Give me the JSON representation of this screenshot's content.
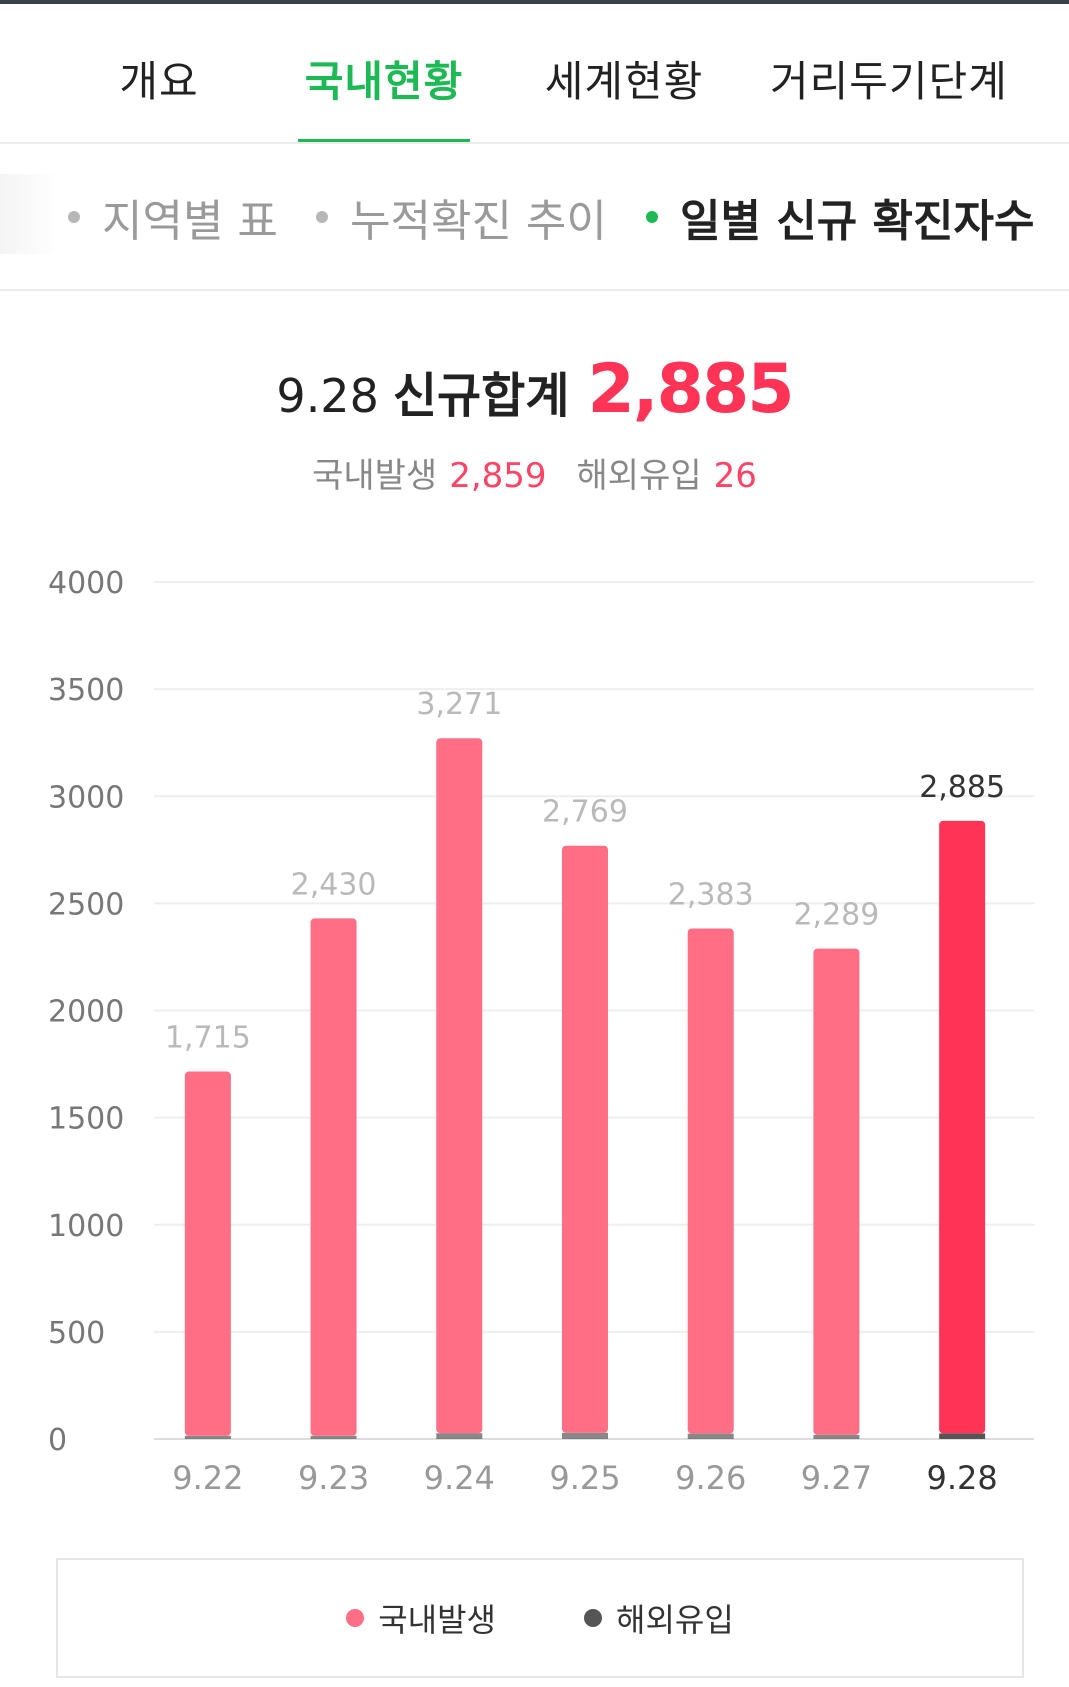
{
  "main_tabs": [
    {
      "label": "개요",
      "active": false
    },
    {
      "label": "국내현황",
      "active": true
    },
    {
      "label": "세계현황",
      "active": false
    },
    {
      "label": "거리두기단계",
      "active": false
    }
  ],
  "sub_tabs": [
    {
      "label": "지역별 표",
      "active": false
    },
    {
      "label": "누적확진 추이",
      "active": false
    },
    {
      "label": "일별 신규 확진자수",
      "active": true
    }
  ],
  "summary": {
    "date": "9.28",
    "label": "신규합계",
    "total": "2,885",
    "domestic_label": "국내발생",
    "domestic_value": "2,859",
    "imported_label": "해외유입",
    "imported_value": "26"
  },
  "colors": {
    "accent_green": "#1db954",
    "domestic_bar": "#ff6e85",
    "domestic_bar_highlight": "#ff3355",
    "imported_bar": "#555555"
  },
  "chart_data": {
    "type": "bar",
    "stacked": true,
    "categories": [
      "9.22",
      "9.23",
      "9.24",
      "9.25",
      "9.26",
      "9.27",
      "9.28"
    ],
    "totals": [
      1715,
      2430,
      3271,
      2769,
      2383,
      2289,
      2885
    ],
    "total_labels": [
      "1,715",
      "2,430",
      "3,271",
      "2,769",
      "2,383",
      "2,289",
      "2,885"
    ],
    "series": [
      {
        "name": "국내발생",
        "values": [
          1700,
          2415,
          3244,
          2740,
          2358,
          2270,
          2859
        ]
      },
      {
        "name": "해외유입",
        "values": [
          15,
          15,
          27,
          29,
          25,
          19,
          26
        ]
      }
    ],
    "highlight_index": 6,
    "y_ticks": [
      0,
      500,
      1000,
      1500,
      2000,
      2500,
      3000,
      3500,
      4000
    ],
    "ylim": [
      0,
      4000
    ],
    "grid": true,
    "legend": "bottom"
  }
}
